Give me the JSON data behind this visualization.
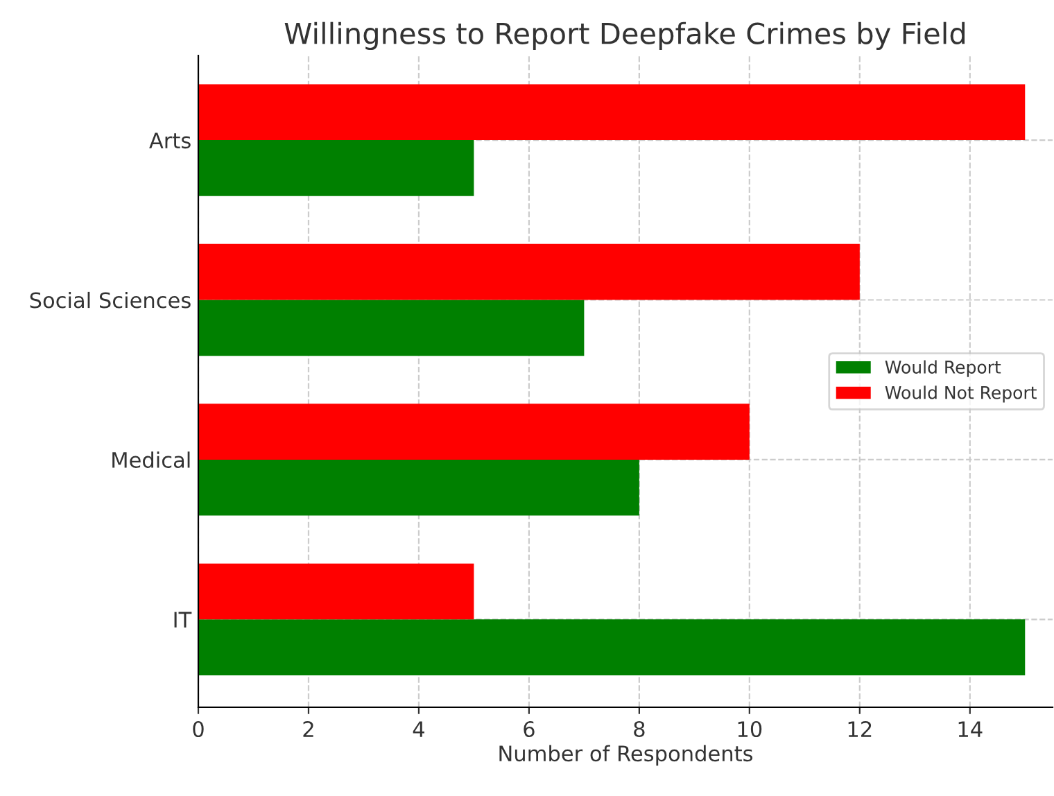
{
  "chart_data": {
    "type": "bar",
    "orientation": "horizontal",
    "title": "Willingness to Report Deepfake Crimes by Field",
    "xlabel": "Number of Respondents",
    "categories": [
      "Arts",
      "Social Sciences",
      "Medical",
      "IT"
    ],
    "series": [
      {
        "name": "Would Report",
        "color": "#008000",
        "values": [
          5,
          7,
          8,
          15
        ]
      },
      {
        "name": "Would Not Report",
        "color": "#ff0000",
        "values": [
          15,
          12,
          10,
          5
        ]
      }
    ],
    "xlim": [
      0,
      15.5
    ],
    "xticks": [
      0,
      2,
      4,
      6,
      8,
      10,
      12,
      14
    ],
    "grid": true,
    "legend": "right"
  }
}
